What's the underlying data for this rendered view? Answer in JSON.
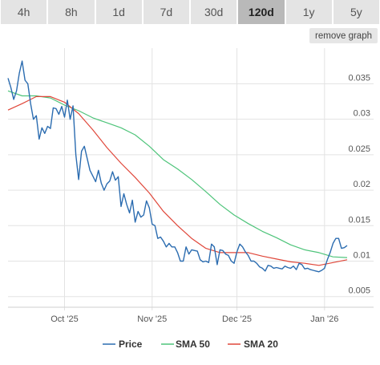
{
  "tabs": [
    {
      "label": "4h",
      "active": false
    },
    {
      "label": "8h",
      "active": false
    },
    {
      "label": "1d",
      "active": false
    },
    {
      "label": "7d",
      "active": false
    },
    {
      "label": "30d",
      "active": false
    },
    {
      "label": "120d",
      "active": true
    },
    {
      "label": "1y",
      "active": false
    },
    {
      "label": "5y",
      "active": false
    }
  ],
  "remove_graph_label": "remove graph",
  "chart_data": {
    "type": "line",
    "x_ticks": [
      {
        "label": "Oct '25",
        "day": 20
      },
      {
        "label": "Nov '25",
        "day": 51
      },
      {
        "label": "Dec '25",
        "day": 81
      },
      {
        "label": "Jan '26",
        "day": 112
      }
    ],
    "x_range": [
      0,
      120
    ],
    "y_ticks": [
      0.005,
      0.01,
      0.015,
      0.02,
      0.025,
      0.03,
      0.035
    ],
    "y_tick_labels": [
      "0.005",
      "0.01",
      "0.015",
      "0.02",
      "0.025",
      "0.03",
      "0.035"
    ],
    "ylim": [
      0.0035,
      0.0398
    ],
    "grid": true,
    "legend_position": "bottom",
    "series": [
      {
        "name": "Price",
        "color": "#2b6cb0",
        "x": [
          0,
          1,
          2,
          3,
          4,
          5,
          6,
          7,
          8,
          9,
          10,
          11,
          12,
          13,
          14,
          15,
          16,
          17,
          18,
          19,
          20,
          21,
          22,
          23,
          24,
          25,
          26,
          27,
          28,
          29,
          30,
          31,
          32,
          33,
          34,
          35,
          36,
          37,
          38,
          39,
          40,
          41,
          42,
          43,
          44,
          45,
          46,
          47,
          48,
          49,
          50,
          51,
          52,
          53,
          54,
          55,
          56,
          57,
          58,
          59,
          60,
          61,
          62,
          63,
          64,
          65,
          66,
          67,
          68,
          69,
          70,
          71,
          72,
          73,
          74,
          75,
          76,
          77,
          78,
          79,
          80,
          81,
          82,
          83,
          84,
          85,
          86,
          87,
          88,
          89,
          90,
          91,
          92,
          93,
          94,
          95,
          96,
          97,
          98,
          99,
          100,
          101,
          102,
          103,
          104,
          105,
          106,
          107,
          108,
          109,
          110,
          111,
          112,
          113,
          114,
          115,
          116,
          117,
          118,
          119,
          120
        ],
        "values": [
          0.0358,
          0.0345,
          0.0328,
          0.034,
          0.0365,
          0.0382,
          0.0355,
          0.035,
          0.0322,
          0.03,
          0.0305,
          0.0272,
          0.0288,
          0.028,
          0.029,
          0.0287,
          0.0316,
          0.0315,
          0.0307,
          0.0318,
          0.0303,
          0.0327,
          0.03,
          0.0319,
          0.025,
          0.0215,
          0.0255,
          0.0262,
          0.0245,
          0.0228,
          0.022,
          0.0212,
          0.0228,
          0.021,
          0.02,
          0.0209,
          0.0213,
          0.0226,
          0.0214,
          0.0219,
          0.0177,
          0.0195,
          0.018,
          0.0168,
          0.0186,
          0.0155,
          0.017,
          0.0162,
          0.0165,
          0.0185,
          0.0175,
          0.0152,
          0.015,
          0.0132,
          0.0134,
          0.0128,
          0.012,
          0.0125,
          0.012,
          0.012,
          0.0112,
          0.01,
          0.01,
          0.012,
          0.011,
          0.0116,
          0.0115,
          0.0114,
          0.0102,
          0.0099,
          0.01,
          0.0098,
          0.0124,
          0.012,
          0.0095,
          0.0116,
          0.0115,
          0.011,
          0.0108,
          0.01,
          0.0097,
          0.0113,
          0.0124,
          0.012,
          0.0113,
          0.0108,
          0.01,
          0.01,
          0.0097,
          0.0092,
          0.009,
          0.0086,
          0.0094,
          0.0093,
          0.009,
          0.0091,
          0.009,
          0.0089,
          0.0093,
          0.0091,
          0.009,
          0.0093,
          0.0088,
          0.0097,
          0.0095,
          0.0089,
          0.009,
          0.0088,
          0.0087,
          0.0086,
          0.0085,
          0.0087,
          0.009,
          0.0102,
          0.0112,
          0.0125,
          0.0132,
          0.0132,
          0.0118,
          0.0119,
          0.0122
        ]
      },
      {
        "name": "SMA 50",
        "color": "#4ec47a",
        "x": [
          0,
          5,
          10,
          15,
          20,
          25,
          30,
          35,
          40,
          45,
          50,
          55,
          60,
          65,
          70,
          75,
          80,
          85,
          90,
          95,
          100,
          105,
          110,
          115,
          120
        ],
        "values": [
          0.034,
          0.0333,
          0.0333,
          0.033,
          0.032,
          0.0312,
          0.0302,
          0.0295,
          0.0288,
          0.0278,
          0.0262,
          0.0243,
          0.023,
          0.0215,
          0.0198,
          0.018,
          0.0165,
          0.0153,
          0.0142,
          0.0133,
          0.0123,
          0.0116,
          0.0112,
          0.0106,
          0.0105
        ]
      },
      {
        "name": "SMA 20",
        "color": "#e0473a",
        "x": [
          0,
          5,
          10,
          15,
          20,
          25,
          30,
          35,
          40,
          45,
          50,
          55,
          60,
          65,
          70,
          75,
          80,
          85,
          90,
          95,
          100,
          105,
          110,
          115,
          120
        ],
        "values": [
          0.0313,
          0.0322,
          0.0332,
          0.0332,
          0.0324,
          0.0308,
          0.0285,
          0.026,
          0.0238,
          0.0218,
          0.0196,
          0.017,
          0.015,
          0.0132,
          0.0118,
          0.0112,
          0.0112,
          0.0112,
          0.0107,
          0.0103,
          0.0099,
          0.0097,
          0.0094,
          0.0098,
          0.0102
        ]
      }
    ]
  }
}
